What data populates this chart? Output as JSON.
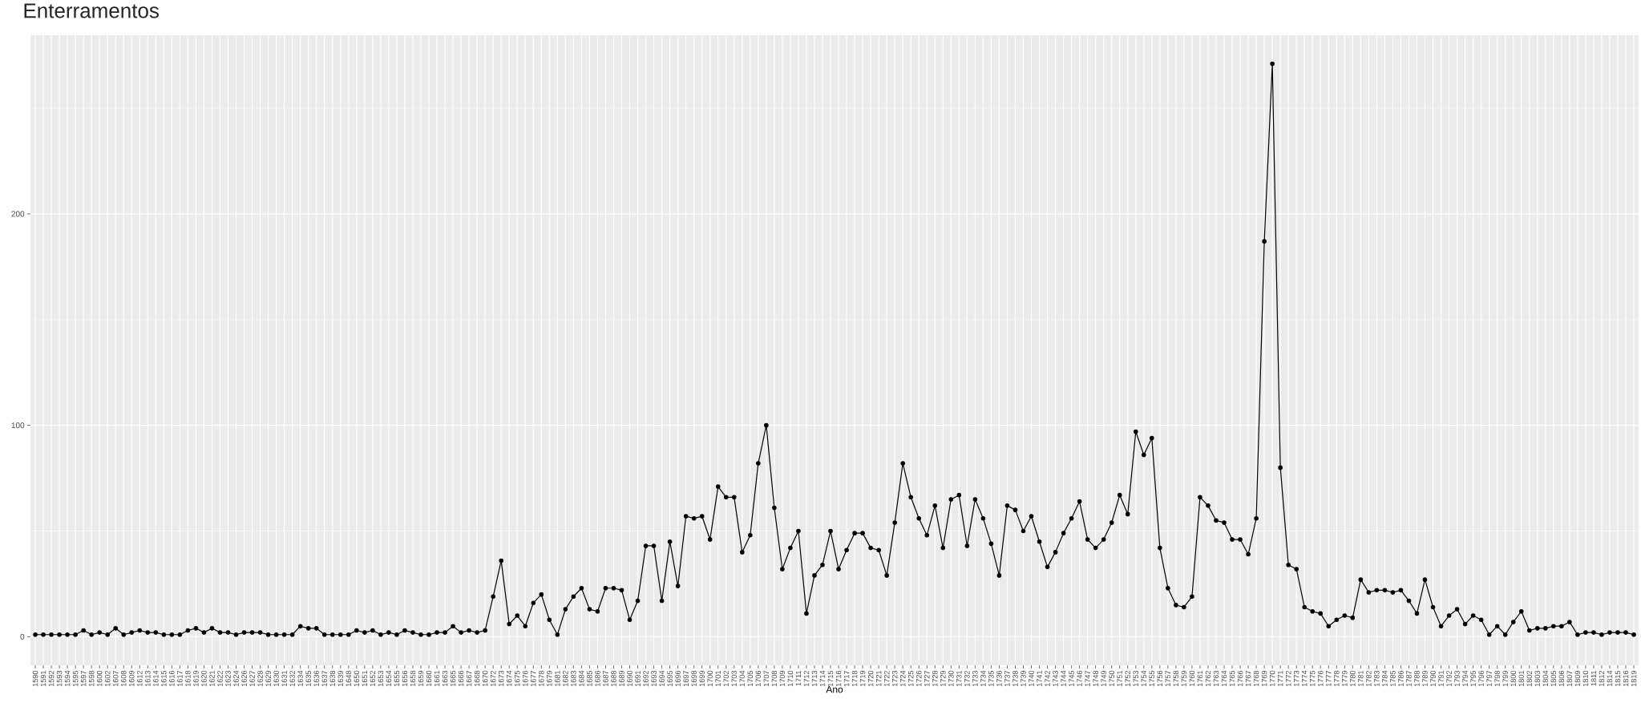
{
  "chart_data": {
    "type": "line",
    "title": "Enterramentos",
    "xlabel": "Ano",
    "categories": [
      "1590",
      "1591",
      "1592",
      "1593",
      "1594",
      "1595",
      "1597",
      "1598",
      "1600",
      "1602",
      "1607",
      "1608",
      "1609",
      "1612",
      "1613",
      "1614",
      "1615",
      "1616",
      "1617",
      "1618",
      "1619",
      "1620",
      "1621",
      "1622",
      "1623",
      "1624",
      "1626",
      "1627",
      "1628",
      "1629",
      "1630",
      "1631",
      "1632",
      "1634",
      "1635",
      "1636",
      "1637",
      "1638",
      "1639",
      "1648",
      "1650",
      "1651",
      "1652",
      "1653",
      "1654",
      "1655",
      "1656",
      "1658",
      "1659",
      "1660",
      "1661",
      "1663",
      "1665",
      "1666",
      "1667",
      "1668",
      "1670",
      "1672",
      "1673",
      "1674",
      "1675",
      "1676",
      "1677",
      "1678",
      "1679",
      "1681",
      "1682",
      "1683",
      "1684",
      "1685",
      "1686",
      "1687",
      "1688",
      "1689",
      "1690",
      "1691",
      "1692",
      "1693",
      "1694",
      "1695",
      "1696",
      "1697",
      "1698",
      "1699",
      "1700",
      "1701",
      "1702",
      "1703",
      "1704",
      "1705",
      "1706",
      "1707",
      "1708",
      "1709",
      "1710",
      "1711",
      "1712",
      "1713",
      "1714",
      "1715",
      "1716",
      "1717",
      "1718",
      "1719",
      "1720",
      "1721",
      "1722",
      "1723",
      "1724",
      "1725",
      "1726",
      "1727",
      "1728",
      "1729",
      "1730",
      "1731",
      "1732",
      "1733",
      "1734",
      "1735",
      "1736",
      "1737",
      "1738",
      "1739",
      "1740",
      "1741",
      "1742",
      "1743",
      "1744",
      "1745",
      "1746",
      "1747",
      "1748",
      "1749",
      "1750",
      "1751",
      "1752",
      "1753",
      "1754",
      "1755",
      "1756",
      "1757",
      "1758",
      "1759",
      "1760",
      "1761",
      "1762",
      "1763",
      "1764",
      "1765",
      "1766",
      "1767",
      "1768",
      "1769",
      "1770",
      "1771",
      "1772",
      "1773",
      "1774",
      "1775",
      "1776",
      "1777",
      "1778",
      "1779",
      "1780",
      "1781",
      "1782",
      "1783",
      "1784",
      "1785",
      "1786",
      "1787",
      "1788",
      "1789",
      "1790",
      "1791",
      "1792",
      "1793",
      "1794",
      "1795",
      "1796",
      "1797",
      "1798",
      "1799",
      "1800",
      "1801",
      "1802",
      "1803",
      "1804",
      "1805",
      "1806",
      "1807",
      "1809",
      "1810",
      "1811",
      "1812",
      "1814",
      "1815",
      "1816",
      "1819"
    ],
    "series": [
      {
        "color": "#000000",
        "values": [
          1,
          1,
          1,
          1,
          1,
          1,
          3,
          1,
          2,
          1,
          4,
          1,
          2,
          3,
          2,
          2,
          1,
          1,
          1,
          3,
          4,
          2,
          4,
          2,
          2,
          1,
          2,
          2,
          2,
          1,
          1,
          1,
          1,
          5,
          4,
          4,
          1,
          1,
          1,
          1,
          3,
          2,
          3,
          1,
          2,
          1,
          3,
          2,
          1,
          1,
          2,
          2,
          5,
          2,
          3,
          2,
          3,
          19,
          36,
          6,
          10,
          5,
          16,
          20,
          8,
          1,
          13,
          19,
          23,
          13,
          12,
          23,
          23,
          22,
          8,
          17,
          43,
          43,
          17,
          45,
          24,
          57,
          56,
          57,
          46,
          71,
          66,
          66,
          40,
          48,
          82,
          100,
          61,
          32,
          42,
          50,
          11,
          29,
          34,
          50,
          32,
          41,
          49,
          49,
          42,
          41,
          29,
          54,
          82,
          66,
          56,
          48,
          62,
          42,
          65,
          67,
          43,
          65,
          56,
          44,
          29,
          62,
          60,
          50,
          57,
          45,
          33,
          40,
          49,
          56,
          64,
          46,
          42,
          46,
          54,
          67,
          58,
          97,
          86,
          94,
          42,
          23,
          15,
          14,
          19,
          66,
          62,
          55,
          54,
          46,
          46,
          39,
          56,
          187,
          271,
          80,
          34,
          32,
          14,
          12,
          11,
          5,
          8,
          10,
          9,
          27,
          21,
          22,
          22,
          21,
          22,
          17,
          11,
          27,
          14,
          5,
          10,
          13,
          6,
          10,
          8,
          1,
          5,
          1,
          7,
          12,
          3,
          4,
          4,
          5,
          5,
          7,
          1,
          2,
          2,
          1,
          2,
          2,
          2,
          1
        ]
      }
    ],
    "ylim": [
      -13.5,
      284.5
    ],
    "yticks": [
      0,
      {
        "value": 50,
        "label": null
      },
      100,
      {
        "value": 150,
        "label": null
      },
      200,
      {
        "value": 250,
        "label": null
      }
    ],
    "grid": true,
    "marker": "circle"
  }
}
